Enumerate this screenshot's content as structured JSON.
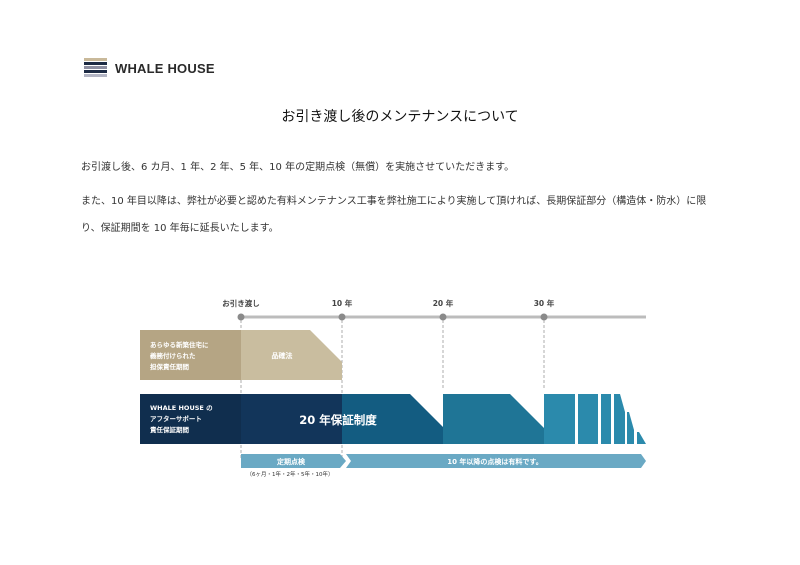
{
  "brand": {
    "name": "WHALE HOUSE",
    "mark_colors": [
      "#c9b99a",
      "#1d2b44",
      "#8d8ea0",
      "#1d2b44",
      "#b3b5c4"
    ]
  },
  "heading": "お引き渡し後のメンテナンスについて",
  "paragraphs": [
    "お引渡し後、6 カ月、1 年、2 年、5 年、10 年の定期点検（無償）を実施させていただきます。",
    "また、10 年目以降は、弊社が必要と認めた有料メンテナンス工事を弊社施工により実施して頂ければ、長期保証部分（構造体・防水）に限り、保証期間を 10 年毎に延長いたします。"
  ],
  "timeline": {
    "milestones": [
      "お引き渡し",
      "10 年",
      "20 年",
      "30 年"
    ]
  },
  "rows": {
    "legal_label_lines": [
      "あらゆる新築住宅に",
      "義務付けられた",
      "担保責任期間"
    ],
    "legal_bar_label": "品確法",
    "whale_label_lines": [
      "WHALE HOUSE の",
      "アフターサポート",
      "責任保証期間"
    ],
    "whale_bar_label": "20 年保証制度"
  },
  "inspections": {
    "free_label": "定期点検",
    "free_detail": "（6ヶ月・1年・2年・5年・10年）",
    "paid_label": "10 年以降の点検は有料です。"
  },
  "colors": {
    "gold": "#b5a584",
    "navy": "#102e4e",
    "blue_dark": "#135c81",
    "blue_mid": "#1f7596",
    "blue_light": "#2b8aac",
    "arrow_blue": "#6aa9c4",
    "line_grey": "#bcbcbc"
  }
}
